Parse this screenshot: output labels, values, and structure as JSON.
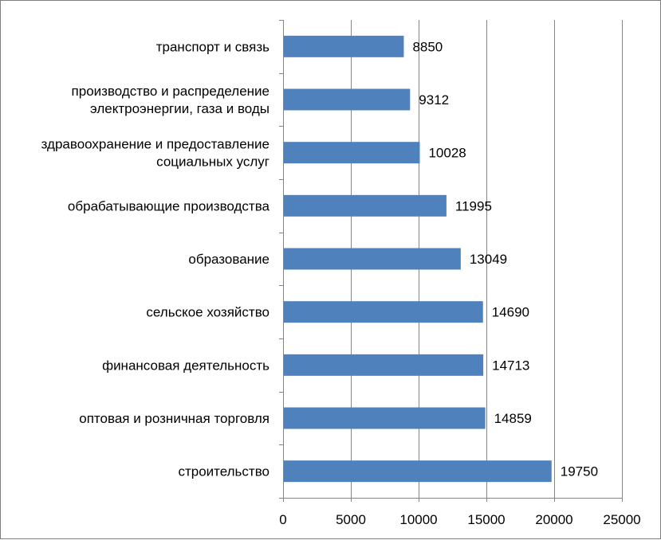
{
  "chart_data": {
    "type": "bar",
    "orientation": "horizontal",
    "categories": [
      [
        "транспорт и связь"
      ],
      [
        "производство и распределение",
        "электроэнергии, газа и воды"
      ],
      [
        "здравоохранение и предоставление",
        "социальных услуг"
      ],
      [
        "обрабатывающие производства"
      ],
      [
        "образование"
      ],
      [
        "сельское хозяйство"
      ],
      [
        "финансовая деятельность"
      ],
      [
        "оптовая и розничная торговля"
      ],
      [
        "строительство"
      ]
    ],
    "values": [
      8850,
      9312,
      10028,
      11995,
      13049,
      14690,
      14713,
      14859,
      19750
    ],
    "data_labels": [
      "8850",
      "9312",
      "10028",
      "11995",
      "13049",
      "14690",
      "14713",
      "14859",
      "19750"
    ],
    "xlim": [
      0,
      25000
    ],
    "x_ticks": [
      0,
      5000,
      10000,
      15000,
      20000,
      25000
    ],
    "x_tick_labels": [
      "0",
      "5000",
      "10000",
      "15000",
      "20000",
      "25000"
    ],
    "grid": "vertical major gridlines",
    "legend": "none",
    "bar_color": "#4f81bd",
    "grid_color": "#868686"
  }
}
